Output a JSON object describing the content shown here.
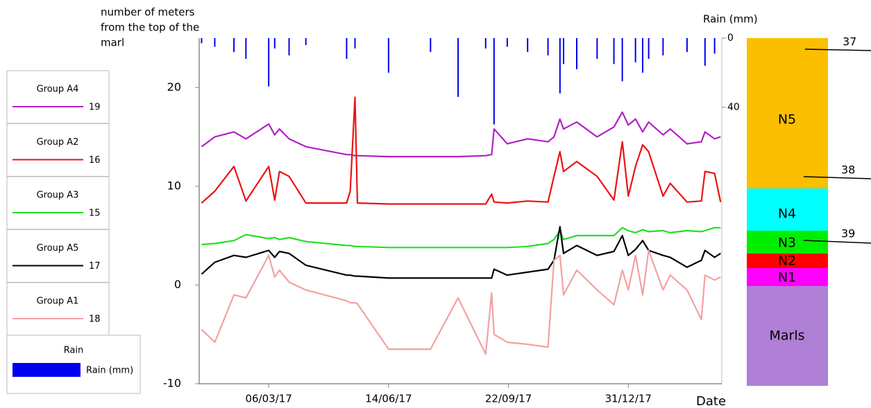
{
  "chart_data": {
    "type": "line",
    "ylabel": [
      "number of meters",
      "from the top of the",
      "marl"
    ],
    "y2label": "Rain (mm)",
    "xlabel": "Date",
    "x": [
      "2017-01-09",
      "2017-01-20",
      "2017-02-05",
      "2017-02-15",
      "2017-03-06",
      "2017-03-11",
      "2017-03-15",
      "2017-03-23",
      "2017-04-06",
      "2017-05-10",
      "2017-05-13",
      "2017-05-17",
      "2017-05-19",
      "2017-06-14",
      "2017-07-19",
      "2017-08-11",
      "2017-09-03",
      "2017-09-08",
      "2017-09-10",
      "2017-09-21",
      "2017-10-08",
      "2017-10-25",
      "2017-10-30",
      "2017-11-04",
      "2017-11-07",
      "2017-11-18",
      "2017-12-05",
      "2017-12-19",
      "2017-12-26",
      "2017-12-31",
      "2018-01-06",
      "2018-01-12",
      "2018-01-17",
      "2018-01-29",
      "2018-02-04",
      "2018-02-18",
      "2018-03-02",
      "2018-03-05",
      "2018-03-13",
      "2018-03-18"
    ],
    "xlim": [
      "2017-01-07",
      "2018-03-19"
    ],
    "xticks": [
      {
        "value": "2017-03-06",
        "label": "06/03/17"
      },
      {
        "value": "2017-06-14",
        "label": "14/06/17"
      },
      {
        "value": "2017-09-22",
        "label": "22/09/17"
      },
      {
        "value": "2017-12-31",
        "label": "31/12/17"
      }
    ],
    "ylim": [
      -10,
      25
    ],
    "yticks": [
      -10,
      0,
      10,
      20
    ],
    "y2lim": [
      0,
      200
    ],
    "y2ticks": [
      0,
      40
    ],
    "y2_inverted": true,
    "series": [
      {
        "name": "Group A4",
        "legend_label": "19",
        "color": "#b31fc7",
        "values": [
          14.0,
          15.0,
          15.5,
          14.8,
          16.3,
          15.2,
          15.8,
          14.8,
          14.0,
          13.2,
          13.2,
          13.1,
          13.1,
          13.0,
          13.0,
          13.0,
          13.1,
          13.2,
          15.8,
          14.3,
          14.8,
          14.5,
          15.0,
          16.8,
          15.8,
          16.5,
          15.0,
          16.0,
          17.5,
          16.2,
          16.8,
          15.5,
          16.5,
          15.2,
          15.8,
          14.3,
          14.5,
          15.5,
          14.8,
          15.0
        ]
      },
      {
        "name": "Group A2",
        "legend_label": "16",
        "color": "#ee1111",
        "values": [
          8.3,
          9.5,
          12.0,
          8.5,
          12.0,
          8.6,
          11.5,
          11.0,
          8.3,
          8.3,
          9.5,
          19.0,
          8.3,
          8.2,
          8.2,
          8.2,
          8.2,
          9.2,
          8.4,
          8.3,
          8.5,
          8.4,
          11.0,
          13.5,
          11.5,
          12.5,
          11.0,
          8.6,
          14.5,
          9.0,
          12.0,
          14.2,
          13.5,
          9.0,
          10.3,
          8.4,
          8.5,
          11.5,
          11.3,
          8.4
        ]
      },
      {
        "name": "Group A3",
        "legend_label": "15",
        "color": "#22e022",
        "values": [
          4.1,
          4.2,
          4.5,
          5.1,
          4.7,
          4.8,
          4.6,
          4.8,
          4.4,
          4.0,
          4.0,
          3.9,
          3.9,
          3.8,
          3.8,
          3.8,
          3.8,
          3.8,
          3.8,
          3.8,
          3.9,
          4.2,
          4.6,
          5.5,
          4.6,
          5.0,
          5.0,
          5.0,
          5.8,
          5.5,
          5.3,
          5.6,
          5.4,
          5.5,
          5.3,
          5.5,
          5.4,
          5.5,
          5.8,
          5.8
        ]
      },
      {
        "name": "Group A5",
        "legend_label": "17",
        "color": "#000000",
        "values": [
          1.1,
          2.3,
          3.0,
          2.8,
          3.5,
          2.8,
          3.4,
          3.2,
          2.0,
          1.0,
          1.0,
          0.9,
          0.9,
          0.7,
          0.7,
          0.7,
          0.7,
          0.7,
          1.6,
          1.0,
          1.3,
          1.6,
          2.5,
          5.9,
          3.2,
          4.0,
          3.0,
          3.4,
          5.0,
          3.0,
          3.6,
          4.5,
          3.5,
          3.0,
          2.8,
          1.8,
          2.5,
          3.5,
          2.8,
          3.2
        ]
      },
      {
        "name": "Group A1",
        "legend_label": "18",
        "color": "#f4a0a0",
        "values": [
          -4.5,
          -5.8,
          -1.0,
          -1.3,
          3.0,
          0.8,
          1.5,
          0.3,
          -0.5,
          -1.6,
          -1.8,
          -1.8,
          -1.9,
          -6.5,
          -6.5,
          -1.3,
          -7.0,
          -0.8,
          -5.0,
          -5.8,
          -6.0,
          -6.3,
          2.5,
          3.0,
          -1.0,
          1.5,
          -0.5,
          -2.0,
          1.5,
          -0.5,
          3.0,
          -1.0,
          3.5,
          -0.5,
          1.0,
          -0.5,
          -3.5,
          1.0,
          0.5,
          0.8
        ]
      },
      {
        "name": "Rain",
        "legend_label": "Rain (mm)",
        "type": "bar",
        "axis": "y2",
        "color": "#0000ee",
        "x": [
          "2017-01-09",
          "2017-01-20",
          "2017-02-05",
          "2017-02-15",
          "2017-03-06",
          "2017-03-11",
          "2017-03-23",
          "2017-04-06",
          "2017-05-10",
          "2017-05-17",
          "2017-06-14",
          "2017-07-19",
          "2017-08-11",
          "2017-09-03",
          "2017-09-10",
          "2017-09-21",
          "2017-10-08",
          "2017-10-25",
          "2017-11-04",
          "2017-11-07",
          "2017-11-18",
          "2017-12-05",
          "2017-12-19",
          "2017-12-26",
          "2018-01-06",
          "2018-01-12",
          "2018-01-17",
          "2018-01-29",
          "2018-02-18",
          "2018-03-05",
          "2018-03-13"
        ],
        "values": [
          3,
          5,
          8,
          12,
          28,
          6,
          10,
          4,
          12,
          6,
          20,
          8,
          34,
          6,
          50,
          5,
          8,
          10,
          32,
          15,
          18,
          12,
          15,
          25,
          14,
          20,
          12,
          10,
          8,
          16,
          9
        ]
      }
    ]
  },
  "column": {
    "layers": [
      {
        "label": "N5",
        "color": "#fbbf00"
      },
      {
        "label": "N4",
        "color": "#00ffff"
      },
      {
        "label": "N3",
        "color": "#00ee00"
      },
      {
        "label": "N2",
        "color": "#ff0000"
      },
      {
        "label": "N1",
        "color": "#ff00ff"
      },
      {
        "label": "Marls",
        "color": "#b07fd6"
      }
    ],
    "markers": [
      "37",
      "38",
      "39"
    ]
  }
}
